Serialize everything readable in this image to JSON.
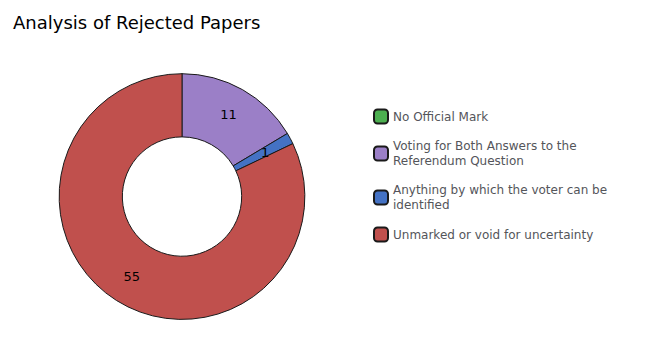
{
  "chart_data": {
    "type": "pie",
    "title": "Analysis of Rejected Papers",
    "categories": [
      "No Official Mark",
      "Voting for Both Answers to the\nReferendum Question",
      "Anything by which the voter can be\nidentified",
      "Unmarked or void for uncertainty"
    ],
    "values": [
      0,
      11,
      1,
      55
    ],
    "colors": [
      "#4CAF50",
      "#9B7FC7",
      "#4472C4",
      "#C0504D"
    ],
    "data_labels": true,
    "legend": "right"
  }
}
